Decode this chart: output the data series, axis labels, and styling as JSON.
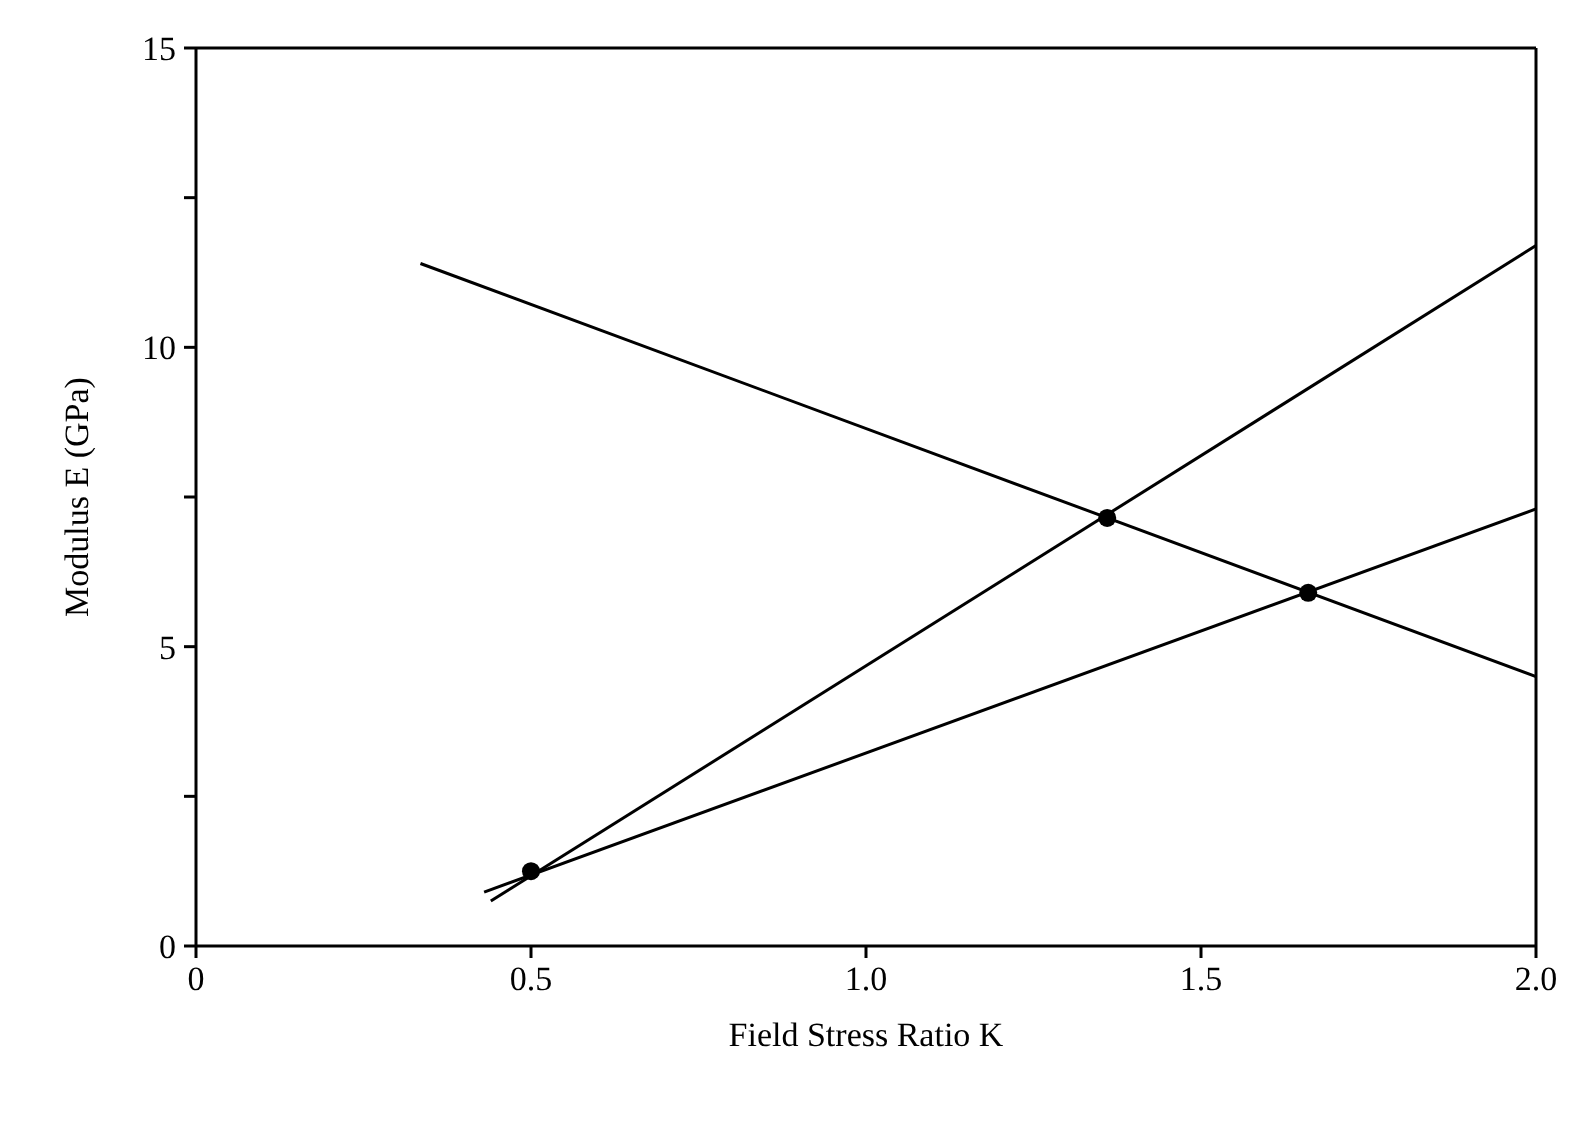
{
  "chart_data": {
    "type": "line",
    "xlabel": "Field Stress Ratio K",
    "ylabel": "Modulus E (GPa)",
    "xlim": [
      0,
      2
    ],
    "ylim": [
      0,
      15
    ],
    "xticks": [
      0,
      {
        "value": 0.5,
        "label": "0.5"
      },
      {
        "value": 1,
        "label": "1.0"
      },
      {
        "value": 1.5,
        "label": "1.5"
      },
      {
        "value": 2,
        "label": "2.0"
      }
    ],
    "yticks": [
      0,
      {
        "value": 2.5,
        "label": null
      },
      5,
      {
        "value": 7.5,
        "label": null
      },
      10,
      {
        "value": 12.5,
        "label": null
      },
      15
    ],
    "marker": "none",
    "series": [
      {
        "color": "#000000",
        "x": [
          0.335,
          2.0
        ],
        "values": [
          11.4,
          4.5
        ]
      },
      {
        "color": "#000000",
        "x": [
          0.44,
          2.0
        ],
        "values": [
          0.75,
          11.7
        ]
      },
      {
        "color": "#000000",
        "x": [
          0.43,
          2.0
        ],
        "values": [
          0.9,
          7.3
        ]
      },
      {
        "type": "scatter",
        "marker": "circle",
        "color": "#000000",
        "x": [
          0.5,
          1.36,
          1.66
        ],
        "values": [
          1.25,
          7.15,
          5.9
        ]
      }
    ]
  }
}
